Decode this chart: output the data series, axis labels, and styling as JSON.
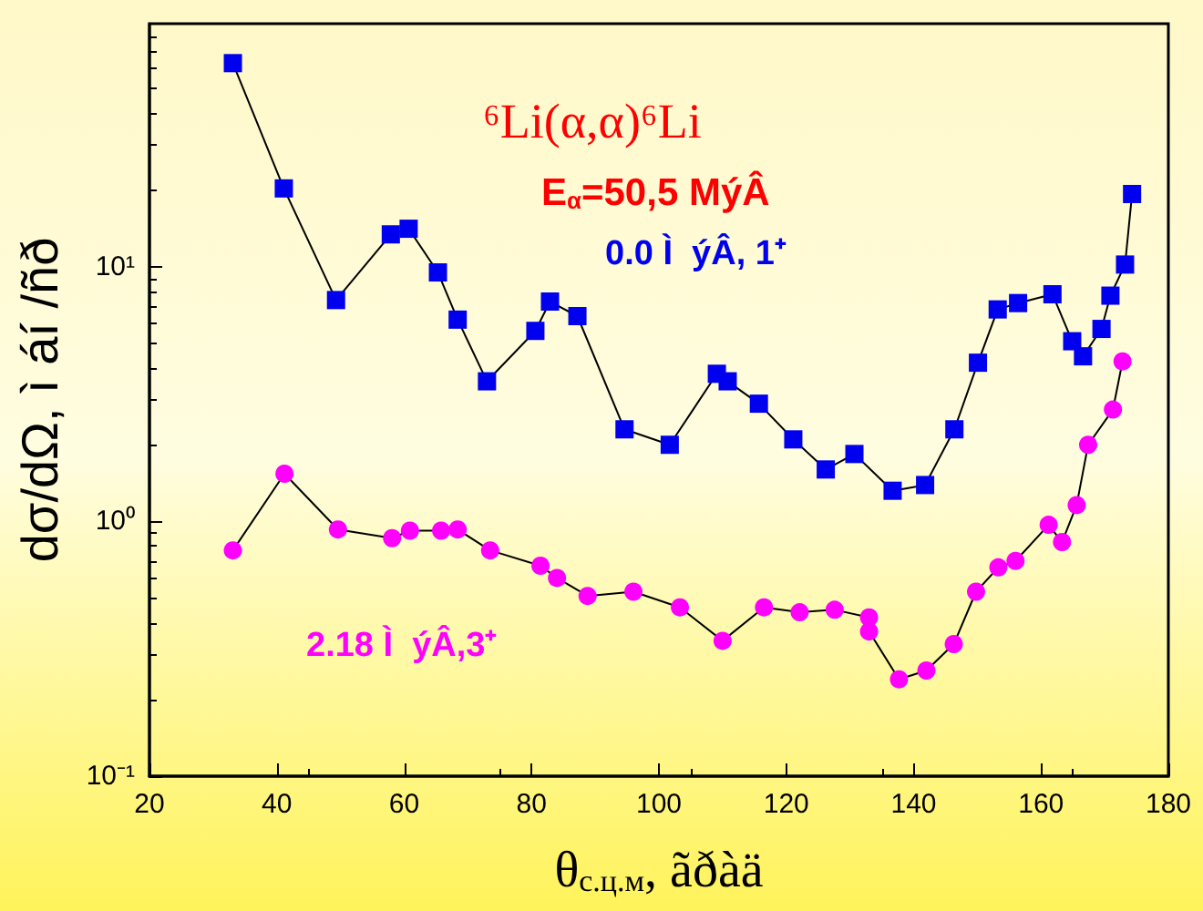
{
  "chart_data": {
    "type": "line",
    "xlabel": "θ$_{c.ц.м}$, ãðàä",
    "ylabel": "dσ/dΩ, ì áí /ñð",
    "annotations": [
      "⁶Li(α,α)⁶Li",
      "E$_{α}$=50,5 MýÂ"
    ],
    "xlim": [
      20,
      180
    ],
    "xticks": [
      20,
      40,
      60,
      80,
      100,
      120,
      140,
      160,
      180
    ],
    "ylim": [
      0.1,
      90
    ],
    "yticks": [
      {
        "value": 0.1,
        "label": "10⁻¹"
      },
      {
        "value": 1,
        "label": "10⁰"
      },
      {
        "value": 10,
        "label": "10¹"
      }
    ],
    "log": "y",
    "grid": false,
    "legend": false,
    "line_style": "solid",
    "series": [
      {
        "name": "0.0 Ì  ýÂ, 1⁺",
        "color": "#0000ee",
        "marker": "square",
        "x": [
          33.1,
          41.1,
          49.3,
          57.9,
          60.7,
          65.3,
          68.4,
          73.0,
          80.6,
          82.9,
          87.2,
          94.6,
          101.7,
          109.1,
          110.8,
          115.7,
          121.1,
          126.2,
          130.7,
          136.7,
          141.8,
          146.4,
          150.1,
          153.2,
          156.4,
          161.8,
          164.9,
          166.6,
          169.5,
          170.9,
          173.2,
          174.3
        ],
        "values": [
          63,
          20.3,
          7.4,
          13.4,
          14.1,
          9.5,
          6.2,
          3.55,
          5.6,
          7.3,
          6.4,
          2.3,
          2.0,
          3.8,
          3.55,
          2.9,
          2.1,
          1.6,
          1.84,
          1.32,
          1.39,
          2.3,
          4.2,
          6.8,
          7.2,
          7.8,
          5.1,
          4.45,
          5.7,
          7.7,
          10.2,
          19.3
        ]
      },
      {
        "name": "2.18 Ì  ýÂ,3⁺",
        "color": "#ff00ff",
        "marker": "circle",
        "x": [
          33.1,
          41.2,
          49.6,
          58.1,
          60.9,
          65.8,
          68.4,
          73.5,
          81.4,
          84.0,
          88.8,
          96.0,
          103.3,
          110.0,
          116.5,
          122.1,
          127.6,
          133.0,
          133.0,
          137.7,
          142.0,
          146.3,
          149.8,
          153.3,
          156.0,
          161.2,
          163.3,
          165.6,
          167.4,
          171.3,
          172.8
        ],
        "values": [
          0.77,
          1.54,
          0.93,
          0.86,
          0.92,
          0.92,
          0.93,
          0.77,
          0.67,
          0.6,
          0.51,
          0.53,
          0.46,
          0.34,
          0.46,
          0.44,
          0.45,
          0.42,
          0.37,
          0.24,
          0.26,
          0.33,
          0.53,
          0.66,
          0.7,
          0.97,
          0.83,
          1.16,
          2.0,
          2.75,
          4.25
        ]
      }
    ]
  }
}
